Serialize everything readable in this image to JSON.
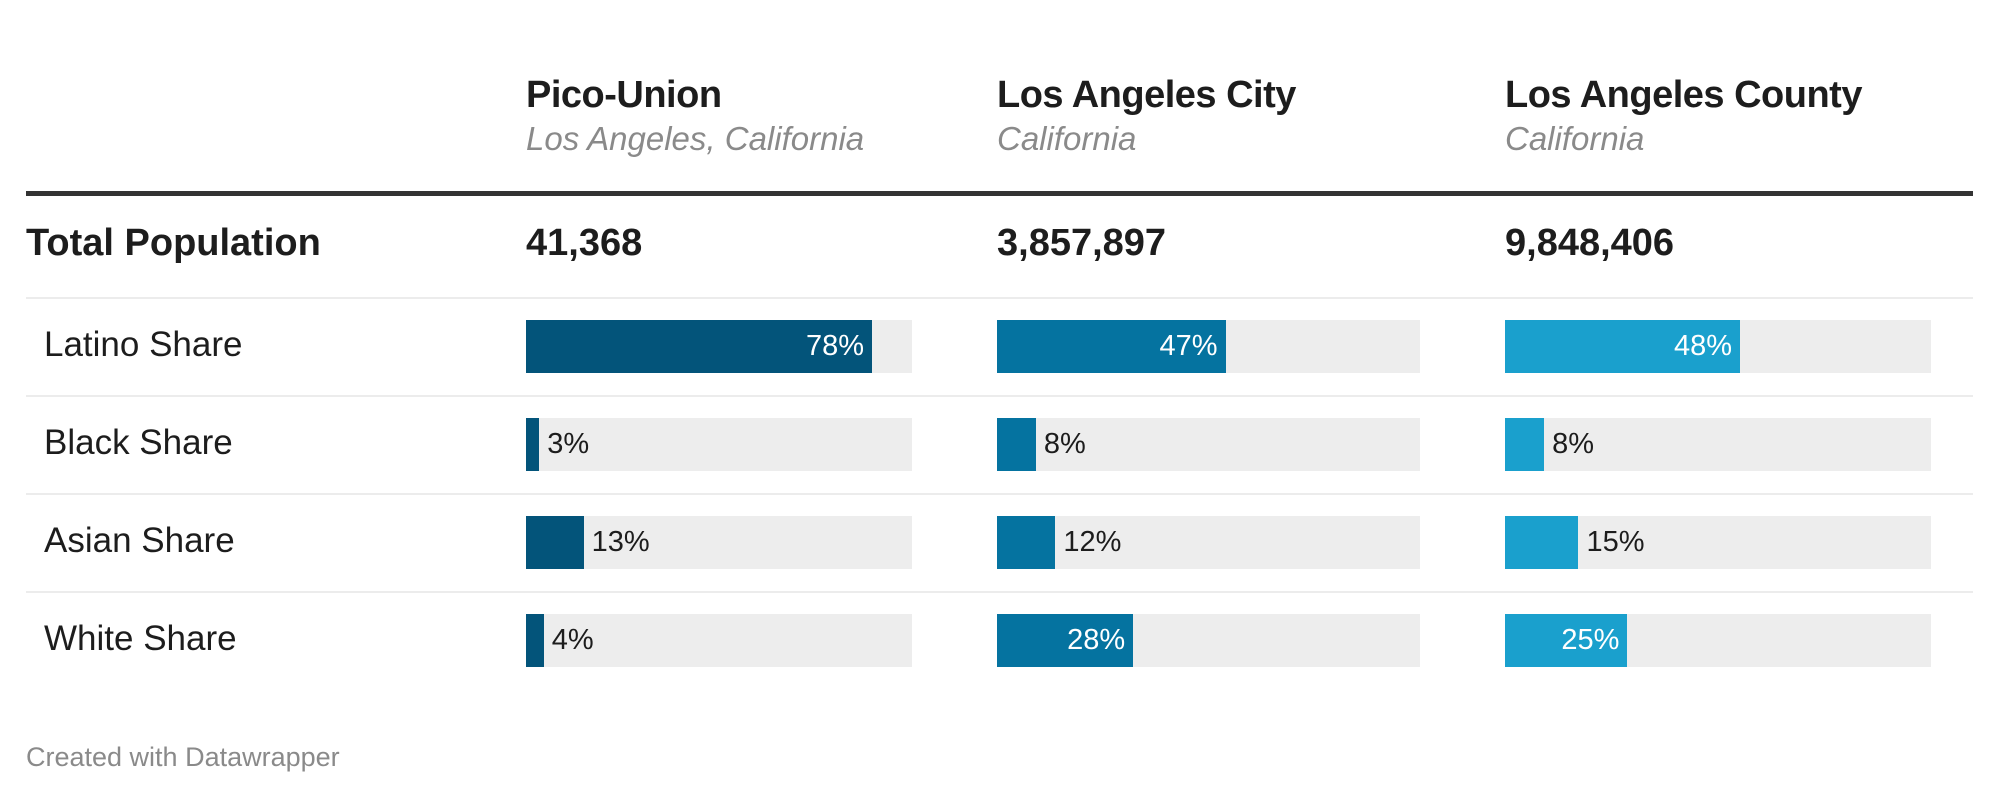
{
  "chart_data": {
    "type": "table",
    "title": "",
    "columns": [
      {
        "name": "Pico-Union",
        "subtitle": "Los Angeles, California",
        "color": "#03547a"
      },
      {
        "name": "Los Angeles City",
        "subtitle": "California",
        "color": "#0573a0"
      },
      {
        "name": "Los Angeles County",
        "subtitle": "California",
        "color": "#1aa0cd"
      }
    ],
    "total_population": {
      "label": "Total Population",
      "values": [
        "41,368",
        "3,857,897",
        "9,848,406"
      ]
    },
    "rows": [
      {
        "label": "Latino Share",
        "values": [
          78,
          47,
          48
        ],
        "labels": [
          "78%",
          "47%",
          "48%"
        ]
      },
      {
        "label": "Black Share",
        "values": [
          3,
          8,
          8
        ],
        "labels": [
          "3%",
          "8%",
          "8%"
        ]
      },
      {
        "label": "Asian Share",
        "values": [
          13,
          12,
          15
        ],
        "labels": [
          "13%",
          "12%",
          "15%"
        ]
      },
      {
        "label": "White Share",
        "values": [
          4,
          28,
          25
        ],
        "labels": [
          "4%",
          "28%",
          "25%"
        ]
      }
    ],
    "bar_scale_max": [
      87,
      87,
      87
    ],
    "track_color": "#ededed"
  },
  "footer": "Created with Datawrapper"
}
